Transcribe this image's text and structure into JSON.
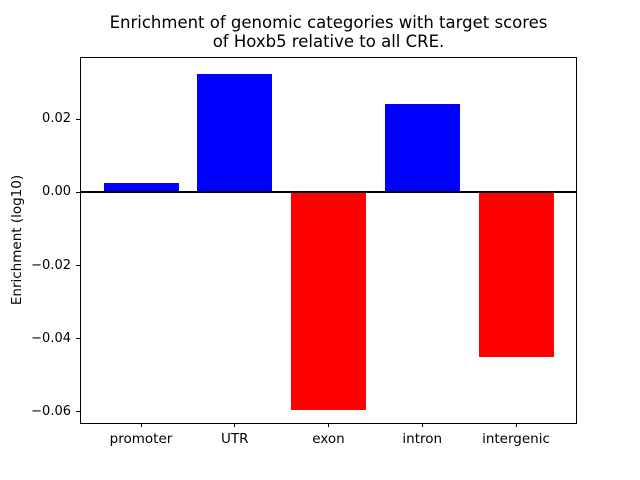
{
  "figure": {
    "background_color": "#ffffff",
    "text_color": "#000000"
  },
  "chart_data": {
    "type": "bar",
    "title": "Enrichment of genomic categories with target scores\nof Hoxb5 relative to all CRE.",
    "xlabel": "",
    "ylabel": "Enrichment (log10)",
    "categories": [
      "promoter",
      "UTR",
      "exon",
      "intron",
      "intergenic"
    ],
    "values": [
      0.0025,
      0.0323,
      -0.0595,
      0.0241,
      -0.0451
    ],
    "bar_colors": [
      "#0000ff",
      "#0000ff",
      "#ff0000",
      "#0000ff",
      "#ff0000"
    ],
    "positive_color": "#0000ff",
    "negative_color": "#ff0000",
    "bar_width": 0.8,
    "ylim": [
      -0.0631,
      0.0368
    ],
    "xlim": [
      -0.64,
      4.64
    ],
    "yticks": [
      {
        "value": 0.02,
        "label": "0.02"
      },
      {
        "value": 0.0,
        "label": "0.00"
      },
      {
        "value": -0.02,
        "label": "−0.02"
      },
      {
        "value": -0.04,
        "label": "−0.04"
      },
      {
        "value": -0.06,
        "label": "−0.06"
      }
    ],
    "zero_line": {
      "value": 0,
      "color": "#000000"
    },
    "grid": false,
    "legend": null
  }
}
